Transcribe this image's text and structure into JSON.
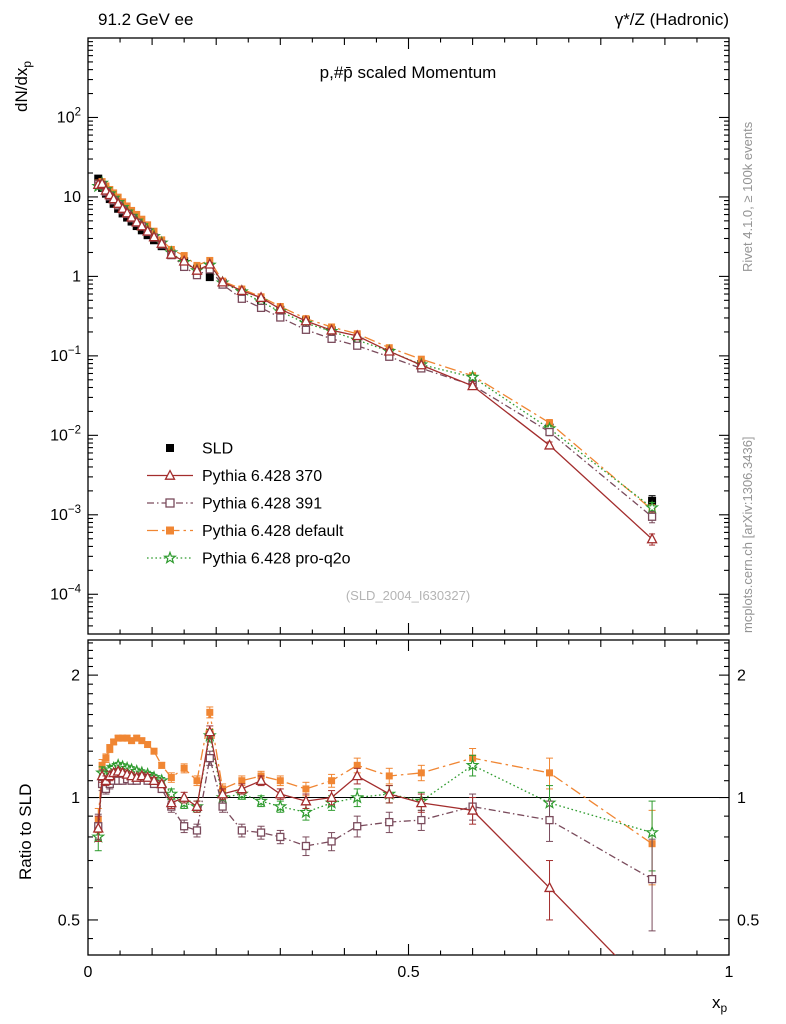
{
  "chart_data": {
    "type": "scatter",
    "title": "p,#p̄ scaled Momentum",
    "header_left": "91.2 GeV ee",
    "header_right": "γ*/Z (Hadronic)",
    "watermark": "(SLD_2004_I630327)",
    "credit_top": "Rivet 4.1.0, ≥ 100k events",
    "credit_bottom": "mcplots.cern.ch [arXiv:1306.3436]",
    "ylabel": {
      "base": "dN/dx",
      "sub": "p"
    },
    "ratio_ylabel": "Ratio to SLD",
    "x_axis": {
      "min": 0,
      "max": 1,
      "labeled": [
        0,
        0.5,
        1
      ],
      "label": "x",
      "label_sub": "p",
      "minor_step": 0.05
    },
    "main_axis": {
      "ymin_exp": -4.5,
      "ymax_exp": 3,
      "labeled_exponents": [
        -4,
        -3,
        -2,
        -1,
        0,
        1,
        2
      ],
      "scale": "log"
    },
    "ratio_axis": {
      "min": 0.41,
      "max": 2.44,
      "labeled": [
        0.5,
        1,
        2
      ],
      "scale": "log"
    },
    "x": [
      0.016,
      0.022,
      0.028,
      0.034,
      0.04,
      0.047,
      0.054,
      0.061,
      0.068,
      0.076,
      0.084,
      0.093,
      0.103,
      0.115,
      0.13,
      0.15,
      0.17,
      0.19,
      0.21,
      0.24,
      0.27,
      0.3,
      0.34,
      0.38,
      0.42,
      0.47,
      0.52,
      0.6,
      0.72,
      0.88
    ],
    "sld": {
      "name": "SLD",
      "color": "#000000",
      "marker": "square-filled",
      "values": [
        17.0,
        13.0,
        11.0,
        9.4,
        8.2,
        7.1,
        6.2,
        5.5,
        4.9,
        4.3,
        3.8,
        3.3,
        2.85,
        2.4,
        1.95,
        1.55,
        1.25,
        0.98,
        0.83,
        0.63,
        0.49,
        0.38,
        0.28,
        0.21,
        0.158,
        0.112,
        0.079,
        0.045,
        0.0125,
        0.0015
      ]
    },
    "series": [
      {
        "name": "Pythia 6.428 370",
        "color": "#a32d2d",
        "marker": "triangle-open",
        "dash": "solid",
        "ratio": [
          0.84,
          1.13,
          1.1,
          1.13,
          1.15,
          1.16,
          1.15,
          1.14,
          1.13,
          1.12,
          1.13,
          1.12,
          1.1,
          1.08,
          0.97,
          1.0,
          0.95,
          1.45,
          1.02,
          1.05,
          1.1,
          1.02,
          0.98,
          1.0,
          1.13,
          1.02,
          0.97,
          0.93,
          0.6,
          0.33
        ]
      },
      {
        "name": "Pythia 6.428 391",
        "color": "#7a4b5c",
        "marker": "square-open",
        "dash": "dashdot",
        "ratio": [
          0.85,
          1.08,
          1.05,
          1.08,
          1.1,
          1.1,
          1.1,
          1.11,
          1.1,
          1.1,
          1.12,
          1.1,
          1.08,
          1.05,
          0.95,
          0.85,
          0.83,
          1.25,
          0.95,
          0.83,
          0.82,
          0.8,
          0.76,
          0.78,
          0.85,
          0.87,
          0.88,
          0.95,
          0.88,
          0.63
        ]
      },
      {
        "name": "Pythia 6.428 default",
        "color": "#f08633",
        "marker": "square-filled",
        "dash": "longdashdot",
        "ratio": [
          0.88,
          1.2,
          1.25,
          1.32,
          1.37,
          1.4,
          1.4,
          1.4,
          1.38,
          1.4,
          1.38,
          1.35,
          1.3,
          1.2,
          1.12,
          1.18,
          1.1,
          1.62,
          1.05,
          1.1,
          1.13,
          1.1,
          1.05,
          1.1,
          1.2,
          1.13,
          1.15,
          1.25,
          1.15,
          0.77
        ]
      },
      {
        "name": "Pythia 6.428 pro-q2o",
        "color": "#2e9b2e",
        "marker": "star-open",
        "dash": "dotted",
        "ratio": [
          0.8,
          1.15,
          1.13,
          1.17,
          1.18,
          1.2,
          1.19,
          1.18,
          1.17,
          1.16,
          1.15,
          1.14,
          1.12,
          1.1,
          1.02,
          0.97,
          0.95,
          1.42,
          1.0,
          1.02,
          0.98,
          0.95,
          0.92,
          0.97,
          1.0,
          1.02,
          0.98,
          1.2,
          0.97,
          0.82
        ]
      }
    ],
    "ratio_err": [
      0.06,
      0.04,
      0.03,
      0.03,
      0.02,
      0.02,
      0.02,
      0.02,
      0.02,
      0.02,
      0.02,
      0.02,
      0.02,
      0.02,
      0.03,
      0.03,
      0.03,
      0.05,
      0.03,
      0.03,
      0.03,
      0.03,
      0.04,
      0.04,
      0.05,
      0.05,
      0.05,
      0.07,
      0.1,
      0.16
    ],
    "legend": {
      "entries": [
        "SLD",
        "Pythia 6.428 370",
        "Pythia 6.428 391",
        "Pythia 6.428 default",
        "Pythia 6.428 pro-q2o"
      ]
    }
  }
}
